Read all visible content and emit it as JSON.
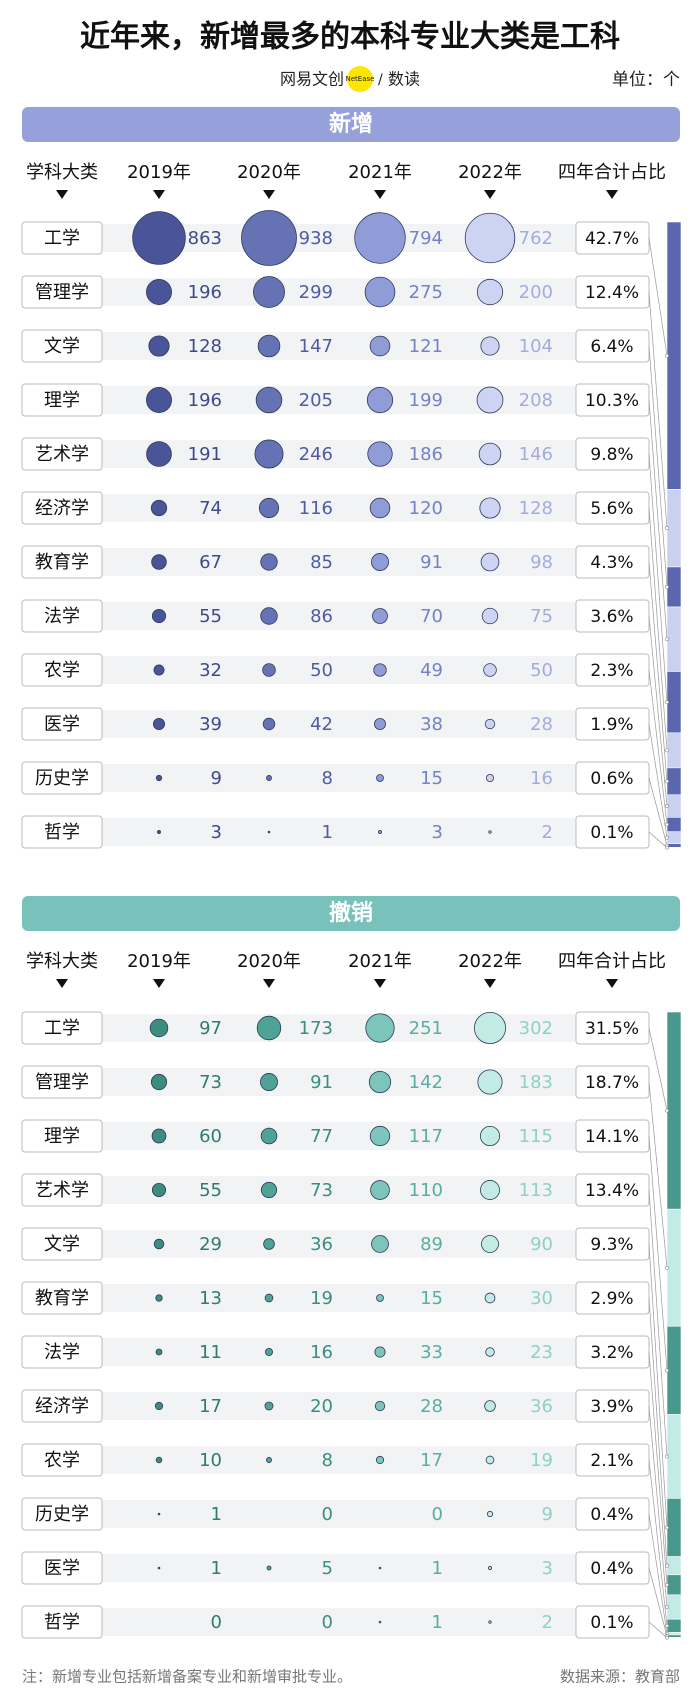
{
  "title": "近年来，新增最多的本科专业大类是工科",
  "brand": {
    "left": "网易文创",
    "badge": "NetEase",
    "right": "数读"
  },
  "unit": "单位：个",
  "columns": [
    "学科大类",
    "2019年",
    "2020年",
    "2021年",
    "2022年",
    "四年合计占比"
  ],
  "sections": [
    {
      "name": "新增",
      "bar_color": "#96a1dc",
      "bubble_colors": [
        "#4a5599",
        "#6572b3",
        "#8f9cd8",
        "#cdd4f3"
      ],
      "text_colors": [
        "#3f4a8c",
        "#4f5ca3",
        "#7482c6",
        "#a3acde"
      ],
      "stack_colors": [
        "#5a66ad",
        "#c9d0f0"
      ],
      "rows": [
        {
          "category": "工学",
          "values": [
            863,
            938,
            794,
            762
          ],
          "share": 42.7,
          "share_label": "42.7%"
        },
        {
          "category": "管理学",
          "values": [
            196,
            299,
            275,
            200
          ],
          "share": 12.4,
          "share_label": "12.4%"
        },
        {
          "category": "文学",
          "values": [
            128,
            147,
            121,
            104
          ],
          "share": 6.4,
          "share_label": "6.4%"
        },
        {
          "category": "理学",
          "values": [
            196,
            205,
            199,
            208
          ],
          "share": 10.3,
          "share_label": "10.3%"
        },
        {
          "category": "艺术学",
          "values": [
            191,
            246,
            186,
            146
          ],
          "share": 9.8,
          "share_label": "9.8%"
        },
        {
          "category": "经济学",
          "values": [
            74,
            116,
            120,
            128
          ],
          "share": 5.6,
          "share_label": "5.6%"
        },
        {
          "category": "教育学",
          "values": [
            67,
            85,
            91,
            98
          ],
          "share": 4.3,
          "share_label": "4.3%"
        },
        {
          "category": "法学",
          "values": [
            55,
            86,
            70,
            75
          ],
          "share": 3.6,
          "share_label": "3.6%"
        },
        {
          "category": "农学",
          "values": [
            32,
            50,
            49,
            50
          ],
          "share": 2.3,
          "share_label": "2.3%"
        },
        {
          "category": "医学",
          "values": [
            39,
            42,
            38,
            28
          ],
          "share": 1.9,
          "share_label": "1.9%"
        },
        {
          "category": "历史学",
          "values": [
            9,
            8,
            15,
            16
          ],
          "share": 0.6,
          "share_label": "0.6%"
        },
        {
          "category": "哲学",
          "values": [
            3,
            1,
            3,
            2
          ],
          "share": 0.1,
          "share_label": "0.1%"
        }
      ]
    },
    {
      "name": "撤销",
      "bar_color": "#79c2bb",
      "bubble_colors": [
        "#3d8c80",
        "#4fa396",
        "#7cc5bb",
        "#c3ebe5"
      ],
      "text_colors": [
        "#2e7b70",
        "#3b8d81",
        "#5aada2",
        "#8fd0c7"
      ],
      "stack_colors": [
        "#4a988c",
        "#c3ebe5"
      ],
      "rows": [
        {
          "category": "工学",
          "values": [
            97,
            173,
            251,
            302
          ],
          "share": 31.5,
          "share_label": "31.5%"
        },
        {
          "category": "管理学",
          "values": [
            73,
            91,
            142,
            183
          ],
          "share": 18.7,
          "share_label": "18.7%"
        },
        {
          "category": "理学",
          "values": [
            60,
            77,
            117,
            115
          ],
          "share": 14.1,
          "share_label": "14.1%"
        },
        {
          "category": "艺术学",
          "values": [
            55,
            73,
            110,
            113
          ],
          "share": 13.4,
          "share_label": "13.4%"
        },
        {
          "category": "文学",
          "values": [
            29,
            36,
            89,
            90
          ],
          "share": 9.3,
          "share_label": "9.3%"
        },
        {
          "category": "教育学",
          "values": [
            13,
            19,
            15,
            30
          ],
          "share": 2.9,
          "share_label": "2.9%"
        },
        {
          "category": "法学",
          "values": [
            11,
            16,
            33,
            23
          ],
          "share": 3.2,
          "share_label": "3.2%"
        },
        {
          "category": "经济学",
          "values": [
            17,
            20,
            28,
            36
          ],
          "share": 3.9,
          "share_label": "3.9%"
        },
        {
          "category": "农学",
          "values": [
            10,
            8,
            17,
            19
          ],
          "share": 2.1,
          "share_label": "2.1%"
        },
        {
          "category": "历史学",
          "values": [
            1,
            0,
            0,
            9
          ],
          "share": 0.4,
          "share_label": "0.4%"
        },
        {
          "category": "医学",
          "values": [
            1,
            5,
            1,
            3
          ],
          "share": 0.4,
          "share_label": "0.4%"
        },
        {
          "category": "哲学",
          "values": [
            0,
            0,
            1,
            2
          ],
          "share": 0.1,
          "share_label": "0.1%"
        }
      ]
    }
  ],
  "note": "注：新增专业包括新增备案专业和新增审批专业。",
  "source": "数据来源：教育部"
}
